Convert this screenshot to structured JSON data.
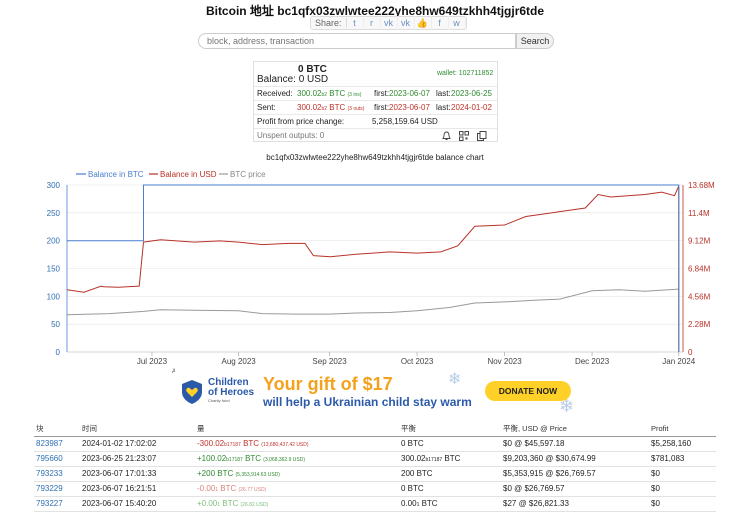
{
  "title": "Bitcoin 地址 bc1qfx03zwlwtee222yhe8hw649tzkhh4tjgjr6tde",
  "share": {
    "label": "Share:",
    "icons": [
      "twitter-icon",
      "reddit-icon",
      "vk-icon",
      "vk-icon",
      "like-icon",
      "facebook-icon",
      "weibo-icon"
    ],
    "glyphs": [
      "t",
      "r",
      "vk",
      "vk",
      "👍",
      "f",
      "w"
    ]
  },
  "search": {
    "placeholder": "block, address, transaction",
    "button": "Search"
  },
  "summary": {
    "balance_btc": "0 BTC",
    "balance_label": "Balance:",
    "balance_usd": "0 USD",
    "wallet": "wallet: 102711852",
    "received_label": "Received:",
    "received_amount": "300.02",
    "received_small": "b2",
    "received_unit": "BTC",
    "received_count": "(3 ins)",
    "received_first_label": "first:",
    "received_first": "2023-06-07",
    "received_last_label": "last:",
    "received_last": "2023-06-25",
    "sent_label": "Sent:",
    "sent_amount": "300.02",
    "sent_small": "b2",
    "sent_unit": "BTC",
    "sent_count": "(3 outs)",
    "sent_first_label": "first:",
    "sent_first": "2023-06-07",
    "sent_last_label": "last:",
    "sent_last": "2024-01-02",
    "profit_label": "Profit from price change:",
    "profit_value": "5,258,159.64 USD",
    "unspent_label": "Unspent outputs: 0"
  },
  "chart_title": "bc1qfx03zwlwtee222yhe8hw649tzkhh4tjgjr6tde balance chart",
  "chart_data": {
    "type": "line",
    "title": "bc1qfx03zwlwtee222yhe8hw649tzkhh4tjgjr6tde balance chart",
    "legend": [
      "Balance in BTC",
      "Balance in USD",
      "BTC price"
    ],
    "colors": {
      "btc": "#4a7fd0",
      "usd": "#b83228",
      "price": "#999999"
    },
    "x_ticks": [
      "Jul 2023",
      "Aug 2023",
      "Sep 2023",
      "Oct 2023",
      "Nov 2023",
      "Dec 2023",
      "Jan 2024"
    ],
    "x_tick_pos": [
      0.7,
      1.72,
      2.79,
      3.82,
      4.85,
      5.88,
      6.9
    ],
    "x_range": [
      -0.3,
      6.95
    ],
    "y_left_ticks": [
      "0",
      "50",
      "100",
      "150",
      "200",
      "250",
      "300"
    ],
    "y_left_range": [
      0,
      300
    ],
    "y_right_ticks": [
      "0",
      "2.28M",
      "4.56M",
      "6.84M",
      "9.12M",
      "11.4M",
      "13.68M"
    ],
    "y_right_range": [
      0,
      13680000
    ],
    "series": [
      {
        "name": "Balance in BTC",
        "axis": "left",
        "x": [
          -0.3,
          0.13,
          0.13,
          0.6,
          0.6,
          6.9,
          6.9
        ],
        "y": [
          200,
          200,
          200,
          200,
          300.02,
          300.02,
          0
        ]
      },
      {
        "name": "Balance in USD",
        "axis": "right",
        "x": [
          -0.3,
          -0.1,
          0.1,
          0.13,
          0.3,
          0.55,
          0.6,
          0.8,
          1.2,
          1.5,
          1.72,
          2.0,
          2.3,
          2.5,
          2.6,
          2.8,
          3.1,
          3.5,
          3.82,
          4.1,
          4.3,
          4.5,
          4.85,
          5.1,
          5.3,
          5.5,
          5.8,
          5.95,
          6.1,
          6.3,
          6.5,
          6.7,
          6.85,
          6.9,
          6.9
        ],
        "y": [
          5100000,
          4900000,
          5400000,
          5350000,
          5300000,
          5400000,
          9000000,
          9200000,
          9000000,
          9100000,
          9000000,
          8800000,
          8900000,
          8900000,
          7900000,
          7800000,
          8000000,
          8200000,
          8100000,
          8200000,
          8700000,
          10300000,
          10400000,
          11100000,
          11300000,
          11500000,
          11800000,
          12900000,
          12700000,
          12800000,
          12900000,
          13100000,
          12800000,
          13600000,
          0
        ]
      },
      {
        "name": "BTC price",
        "axis": "left",
        "x": [
          -0.3,
          0.2,
          0.6,
          0.8,
          1.2,
          1.72,
          2.0,
          2.4,
          2.79,
          3.1,
          3.5,
          3.82,
          4.2,
          4.5,
          4.85,
          5.2,
          5.5,
          5.88,
          6.2,
          6.5,
          6.9
        ],
        "y": [
          67,
          69,
          73,
          76,
          75,
          74,
          69,
          68,
          68,
          70,
          71,
          74,
          80,
          88,
          90,
          93,
          95,
          110,
          112,
          109,
          113
        ]
      }
    ]
  },
  "ad": {
    "label": "AD",
    "org_line1": "Children",
    "org_line2": "of Heroes",
    "org_line3": "Charity fund",
    "headline": "Your gift of $17",
    "subline": "will help a Ukrainian child stay warm",
    "button": "DONATE NOW",
    "colors": {
      "orange": "#f4a21d",
      "blue": "#2b5aa9",
      "yellow": "#ffd028"
    }
  },
  "table": {
    "headers": [
      "块",
      "时间",
      "量",
      "平衡",
      "平衡, USD @ Price",
      "Profit"
    ],
    "rows": [
      {
        "block": "823987",
        "time": "2024-01-02 17:02:02",
        "amount": "-300.02",
        "amount_small": "b17187",
        "unit": "BTC",
        "amount_usd": "(13,680,437.42 USD)",
        "amount_type": "neg",
        "balance": "0 BTC",
        "balance_small": "",
        "usd_price": "$0 @ $45,597.18",
        "profit": "$5,258,160"
      },
      {
        "block": "795660",
        "time": "2023-06-25 21:23:07",
        "amount": "+100.02",
        "amount_small": "b17187",
        "unit": "BTC",
        "amount_usd": "(3,068,362.9 USD)",
        "amount_type": "pos",
        "balance": "300.02",
        "balance_small": "b17187",
        "usd_price": "$9,203,360 @ $30,674.99",
        "profit": "$781,083"
      },
      {
        "block": "793233",
        "time": "2023-06-07 17:01:33",
        "amount": "+200",
        "amount_small": "",
        "unit": "BTC",
        "amount_usd": "(5,353,914.63 USD)",
        "amount_type": "pos",
        "balance": "200 BTC",
        "balance_small": "",
        "usd_price": "$5,353,915 @ $26,769.57",
        "profit": "$0"
      },
      {
        "block": "793229",
        "time": "2023-06-07 16:21:51",
        "amount": "-0.00",
        "amount_small": "1",
        "unit": "BTC",
        "amount_usd": "(26.77 USD)",
        "amount_type": "negfaint",
        "balance": "0 BTC",
        "balance_small": "",
        "usd_price": "$0 @ $26,769.57",
        "profit": "$0"
      },
      {
        "block": "793227",
        "time": "2023-06-07 15:40:20",
        "amount": "+0.00",
        "amount_small": "1",
        "unit": "BTC",
        "amount_usd": "(26.82 USD)",
        "amount_type": "posfaint",
        "balance": "0.00",
        "balance_small": "1",
        "usd_price": "$27 @ $26,821.33",
        "profit": "$0"
      }
    ]
  }
}
